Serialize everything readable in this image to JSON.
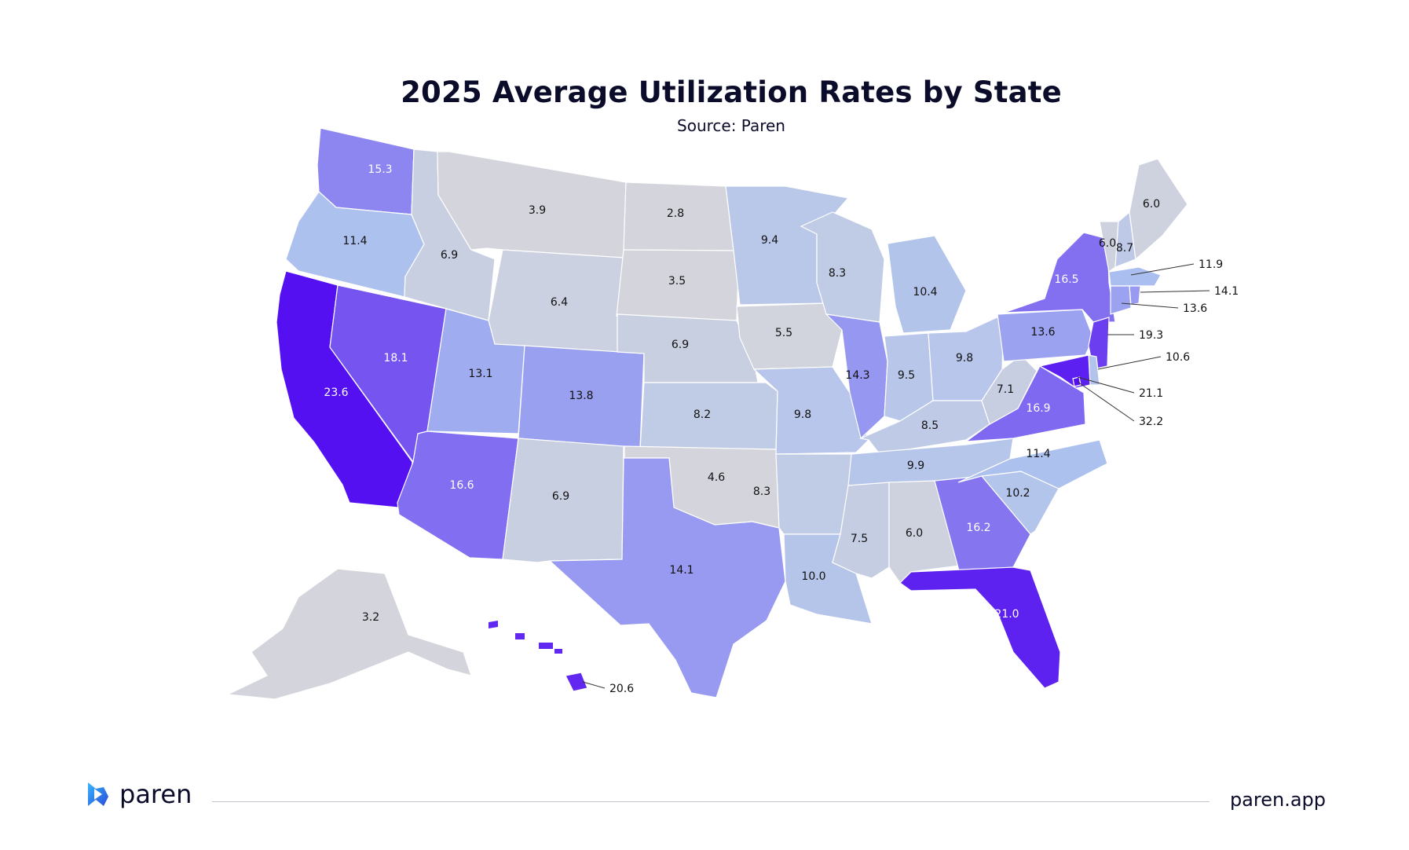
{
  "title": "2025 Average Utilization Rates by State",
  "subtitle": "Source: Paren",
  "legend_scale": {
    "low_color": "#d4d5dc",
    "mid_color": "#a9bff0",
    "high_color": "#5410f0",
    "label_dark": "#111111",
    "label_light": "#ffffff"
  },
  "chart_data": {
    "type": "choropleth",
    "metric": "Average Utilization Rate",
    "states": [
      {
        "id": "WA",
        "value": "15.3"
      },
      {
        "id": "OR",
        "value": "11.4"
      },
      {
        "id": "CA",
        "value": "23.6"
      },
      {
        "id": "NV",
        "value": "18.1"
      },
      {
        "id": "ID",
        "value": "6.9"
      },
      {
        "id": "MT",
        "value": "3.9"
      },
      {
        "id": "WY",
        "value": "6.4"
      },
      {
        "id": "UT",
        "value": "13.1"
      },
      {
        "id": "AZ",
        "value": "16.6"
      },
      {
        "id": "CO",
        "value": "13.8"
      },
      {
        "id": "NM",
        "value": "6.9"
      },
      {
        "id": "ND",
        "value": "2.8"
      },
      {
        "id": "SD",
        "value": "3.5"
      },
      {
        "id": "NE",
        "value": "6.9"
      },
      {
        "id": "KS",
        "value": "8.2"
      },
      {
        "id": "OK",
        "value": "4.6"
      },
      {
        "id": "TX",
        "value": "14.1"
      },
      {
        "id": "MN",
        "value": "9.4"
      },
      {
        "id": "IA",
        "value": "5.5"
      },
      {
        "id": "MO",
        "value": "9.8"
      },
      {
        "id": "AR",
        "value": "8.3"
      },
      {
        "id": "LA",
        "value": "10.0"
      },
      {
        "id": "WI",
        "value": "8.3"
      },
      {
        "id": "IL",
        "value": "14.3"
      },
      {
        "id": "MI",
        "value": "10.4"
      },
      {
        "id": "IN",
        "value": "9.5"
      },
      {
        "id": "OH",
        "value": "9.8"
      },
      {
        "id": "KY",
        "value": "8.5"
      },
      {
        "id": "TN",
        "value": "9.9"
      },
      {
        "id": "MS",
        "value": "7.5"
      },
      {
        "id": "AL",
        "value": "6.0"
      },
      {
        "id": "GA",
        "value": "16.2"
      },
      {
        "id": "FL",
        "value": "21.0"
      },
      {
        "id": "SC",
        "value": "10.2"
      },
      {
        "id": "NC",
        "value": "11.4"
      },
      {
        "id": "VA",
        "value": "16.9"
      },
      {
        "id": "WV",
        "value": "7.1"
      },
      {
        "id": "PA",
        "value": "13.6"
      },
      {
        "id": "NY",
        "value": "16.5"
      },
      {
        "id": "VT",
        "value": "6.0"
      },
      {
        "id": "NH",
        "value": "8.7"
      },
      {
        "id": "ME",
        "value": "6.0"
      },
      {
        "id": "MA",
        "value": "11.9"
      },
      {
        "id": "RI",
        "value": "14.1"
      },
      {
        "id": "CT",
        "value": "13.6"
      },
      {
        "id": "NJ",
        "value": "19.3"
      },
      {
        "id": "DE",
        "value": "10.6"
      },
      {
        "id": "MD",
        "value": "21.1"
      },
      {
        "id": "DC",
        "value": "32.2"
      },
      {
        "id": "AK",
        "value": "3.2"
      },
      {
        "id": "HI",
        "value": "20.6"
      }
    ]
  },
  "footer": {
    "brand": "paren",
    "url": "paren.app",
    "logo_icon": "paren-logo-icon"
  }
}
